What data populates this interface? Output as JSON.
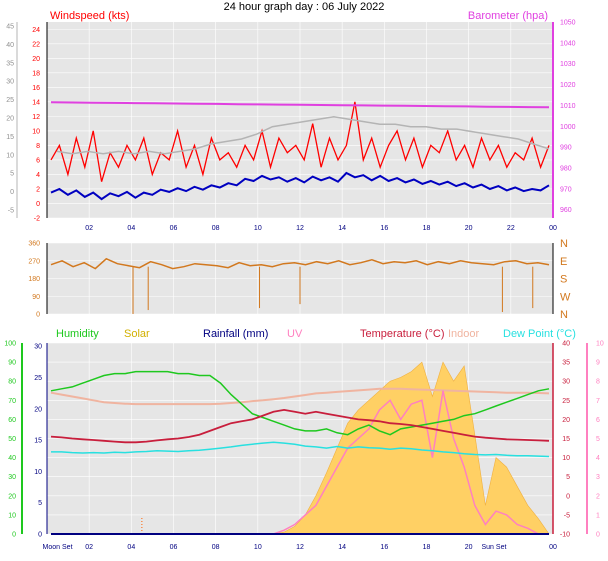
{
  "title": "24 hour graph day : 06 July 2022",
  "colors": {
    "bg": "#e6e6e6",
    "wind": "#ff0000",
    "windavg": "#0000c0",
    "baro": "#e040e0",
    "gray": "#b4b4b4",
    "winddir": "#d2781e",
    "humidity": "#1ec81e",
    "solar": "#ffd064",
    "rain": "#000080",
    "uv": "#ff80c0",
    "temp": "#c81e3c",
    "indoor": "#f0b4a0",
    "dewpoint": "#28e0e0"
  },
  "chart_data": [
    {
      "type": "line",
      "panel": "wind-baro",
      "title": "",
      "left_label": "Windspeed (kts)",
      "right_label": "Barometer (hpa)",
      "x_ticks": [
        "02",
        "04",
        "06",
        "08",
        "10",
        "12",
        "14",
        "16",
        "18",
        "20",
        "22",
        "00"
      ],
      "x_range_hours": [
        0,
        24
      ],
      "left_ticks": [
        -2,
        0,
        2,
        4,
        6,
        8,
        10,
        12,
        14,
        16,
        18,
        20,
        22,
        24
      ],
      "left_scale_labels": [
        "-2",
        "0",
        "2",
        "4",
        "6",
        "8",
        "10",
        "12",
        "14",
        "16",
        "18",
        "20",
        "22",
        "24"
      ],
      "left_range": [
        -2,
        25
      ],
      "far_left_ticks": [
        "-5",
        "0",
        "5",
        "10",
        "15",
        "20",
        "25",
        "30",
        "35",
        "40",
        "45"
      ],
      "right_ticks": [
        "960",
        "970",
        "980",
        "990",
        "1000",
        "1010",
        "1020",
        "1030",
        "1040",
        "1050"
      ],
      "right_range": [
        956,
        1050
      ],
      "series": [
        {
          "name": "Windspeed",
          "values": [
            6,
            8,
            4,
            9,
            5,
            10,
            3,
            7,
            5,
            8,
            6,
            9,
            4,
            7,
            6,
            10,
            5,
            8,
            4,
            9,
            6,
            7,
            5,
            8,
            6,
            10,
            5,
            9,
            7,
            8,
            6,
            11,
            5,
            9,
            6,
            8,
            14,
            6,
            9,
            5,
            8,
            10,
            6,
            9,
            5,
            8,
            7,
            10,
            6,
            8,
            5,
            9,
            6,
            8,
            5,
            7,
            6,
            9,
            5,
            8
          ]
        },
        {
          "name": "Windspeed avg",
          "values": [
            1.5,
            2.0,
            1.2,
            1.8,
            0.9,
            1.5,
            0.6,
            1.4,
            1.0,
            1.6,
            0.8,
            1.5,
            1.2,
            1.9,
            1.6,
            2.1,
            1.7,
            2.3,
            1.9,
            2.5,
            2.2,
            2.8,
            2.5,
            3.4,
            3.1,
            3.8,
            3.3,
            3.6,
            3.0,
            3.5,
            2.9,
            3.7,
            3.2,
            3.6,
            3.0,
            4.2,
            3.6,
            3.9,
            3.2,
            3.8,
            3.1,
            3.5,
            2.9,
            3.3,
            2.7,
            3.1,
            2.6,
            3.0,
            2.4,
            2.8,
            2.2,
            2.6,
            2.0,
            2.4,
            1.8,
            2.2,
            1.7,
            2.0,
            1.8,
            2.5
          ]
        },
        {
          "name": "Barometer",
          "values": [
            1011.5,
            1011.4,
            1011.3,
            1011.2,
            1011.1,
            1011.0,
            1010.9,
            1010.8,
            1010.7,
            1010.6,
            1010.5,
            1010.4,
            1010.3,
            1010.2,
            1010.1,
            1010.0,
            1009.9,
            1009.8,
            1009.7,
            1009.6,
            1009.5,
            1009.4,
            1009.3,
            1009.2,
            1009.1
          ]
        },
        {
          "name": "Gust",
          "values": [
            13.5,
            13.0,
            13.5,
            13.0,
            13.5,
            13.0,
            13.5,
            13.0,
            13.5,
            14.0,
            15.0,
            15.5,
            16.0,
            17.0,
            18.5,
            19.0,
            19.5,
            20.0,
            20.5,
            20.0,
            19.5,
            19.0,
            19.0,
            18.5,
            18.5,
            18.0,
            18.0,
            17.5,
            17.0,
            16.5,
            16.0,
            15.0,
            14.0
          ]
        }
      ]
    },
    {
      "type": "scatter",
      "panel": "wind-direction",
      "title": "",
      "left_ticks": [
        "0",
        "90",
        "180",
        "270",
        "360"
      ],
      "y_range": [
        0,
        360
      ],
      "right_labels": [
        "N",
        "W",
        "S",
        "E",
        "N"
      ],
      "series": [
        {
          "name": "Wind direction",
          "values": [
            250,
            270,
            240,
            260,
            230,
            280,
            255,
            245,
            235,
            265,
            250,
            230,
            240,
            255,
            250,
            245,
            235,
            260,
            245,
            250,
            240,
            255,
            260,
            250,
            265,
            255,
            270,
            250,
            260,
            275,
            255,
            265,
            260,
            270,
            250,
            265,
            255,
            270,
            260,
            255,
            250,
            265,
            270,
            255,
            260,
            250
          ]
        }
      ]
    },
    {
      "type": "line",
      "panel": "temperature",
      "title": "",
      "legend": [
        "Humidity",
        "Solar",
        "Rainfall (mm)",
        "UV",
        "Temperature (°C)",
        "Indoor",
        "Dew Point (°C)"
      ],
      "x_ticks": [
        "Moon Set",
        "02",
        "04",
        "06",
        "08",
        "10",
        "12",
        "14",
        "16",
        "18",
        "20",
        "Sun Set",
        "00"
      ],
      "left_ticks_humidity": [
        "0",
        "10",
        "20",
        "30",
        "40",
        "50",
        "60",
        "70",
        "80",
        "90",
        "100"
      ],
      "left_ticks_rain": [
        "0",
        "5",
        "10",
        "15",
        "20",
        "25",
        "30"
      ],
      "right_ticks_temp": [
        "-10",
        "-5",
        "0",
        "5",
        "10",
        "15",
        "20",
        "25",
        "30",
        "35",
        "40"
      ],
      "right_ticks_uv": [
        "0",
        "1",
        "2",
        "3",
        "4",
        "5",
        "6",
        "7",
        "8",
        "9",
        "10"
      ],
      "temp_range": [
        -10,
        40
      ],
      "series": [
        {
          "name": "Humidity",
          "values": [
            75,
            76,
            77,
            79,
            81,
            83,
            84,
            84,
            85,
            85,
            85,
            85,
            84,
            84,
            83,
            83,
            79,
            73,
            68,
            63,
            61,
            59,
            57,
            55,
            54,
            54,
            55,
            53,
            52,
            55,
            57,
            54,
            52,
            55,
            56,
            57,
            58,
            59,
            60,
            62,
            63,
            65,
            67,
            69,
            71,
            73,
            75,
            76
          ]
        },
        {
          "name": "Solar",
          "values": [
            0,
            0,
            0,
            0,
            0,
            0,
            0,
            0,
            0,
            0,
            0,
            0,
            0,
            0,
            0,
            0,
            0,
            0,
            0,
            0,
            0,
            0,
            1,
            4,
            10,
            20,
            32,
            45,
            58,
            65,
            70,
            75,
            80,
            82,
            85,
            90,
            72,
            90,
            80,
            88,
            52,
            15,
            40,
            35,
            25,
            15,
            8,
            0
          ]
        },
        {
          "name": "Temperature",
          "values": [
            15.5,
            15.3,
            15,
            14.8,
            14.6,
            14.4,
            14.2,
            14.0,
            14.0,
            14.2,
            14.5,
            14.8,
            15,
            15.4,
            16.0,
            17.0,
            18.0,
            19.0,
            19.5,
            20.0,
            21.0,
            22.0,
            22.5,
            22.0,
            21.5,
            22.0,
            21.5,
            21.0,
            20.5,
            20.0,
            19.8,
            19.5,
            19.0,
            18.8,
            18.5,
            18.0,
            17.5,
            17.0,
            16.5,
            16.0,
            15.5,
            15.2,
            15.0,
            14.8,
            14.7,
            14.6,
            14.5,
            14.4
          ]
        },
        {
          "name": "Indoor",
          "values": [
            27,
            26.5,
            26,
            25.5,
            25,
            24.5,
            24.3,
            24.1,
            24.0,
            24.0,
            24.0,
            24.0,
            24.0,
            24.0,
            24.0,
            24.0,
            24.1,
            24.3,
            24.5,
            24.8,
            25.0,
            25.3,
            25.6,
            26.0,
            26.4,
            26.8,
            27.0,
            27.2,
            27.4,
            27.6,
            27.8,
            28.0,
            28.0,
            28.0,
            27.9,
            27.8,
            27.7,
            27.6,
            27.5,
            27.4,
            27.3,
            27.2,
            27.1,
            27.0,
            27.0,
            27.0,
            26.9,
            26.8
          ]
        },
        {
          "name": "Dew Point",
          "values": [
            11.5,
            11.5,
            11.3,
            11.2,
            11.3,
            11.2,
            11.4,
            11.3,
            11.5,
            11.6,
            11.8,
            11.7,
            11.6,
            11.8,
            11.9,
            12.2,
            12.5,
            12.8,
            13.2,
            13.5,
            13.8,
            14.0,
            13.8,
            13.5,
            13.0,
            12.8,
            12.5,
            12.9,
            12.5,
            12.8,
            12.6,
            12.5,
            12.2,
            12.5,
            12.3,
            12.0,
            11.8,
            11.5,
            11.3,
            11.0,
            10.8,
            10.7,
            10.8,
            10.6,
            10.5,
            10.5,
            10.4,
            10.3
          ]
        },
        {
          "name": "UV",
          "values": [
            0,
            0,
            0,
            0,
            0,
            0,
            0,
            0,
            0,
            0,
            0,
            0,
            0,
            0,
            0,
            0,
            0,
            0,
            0,
            0,
            0,
            0,
            0.2,
            0.5,
            1,
            1.5,
            2.5,
            3.5,
            4.5,
            5.0,
            5.5,
            6.5,
            7.0,
            6.0,
            6.8,
            7.0,
            4.0,
            7.5,
            5.0,
            3.5,
            1.5,
            0.5,
            1.2,
            1.0,
            0.5,
            0.3,
            0,
            0
          ]
        },
        {
          "name": "Rainfall (mm)",
          "values": [
            0,
            0,
            0,
            0,
            0,
            0,
            0,
            0,
            0,
            0,
            0,
            0
          ]
        }
      ]
    }
  ]
}
